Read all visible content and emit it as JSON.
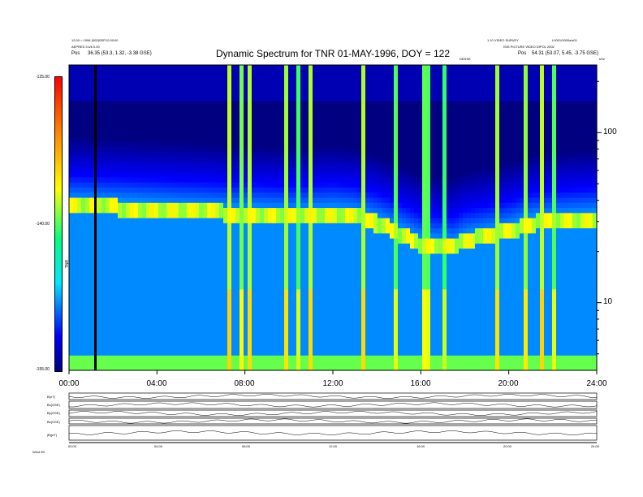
{
  "header": {
    "title": "Dynamic Spectrum for TNR 01-MAY-1996, DOY = 122",
    "left_info_1": "12:00 = 1996 (000)SEP12:00:00",
    "left_info_2": "AEPRES 3 s/s 0.00",
    "left_pos_label": "Pos",
    "left_pos_value": "36.35 (53.3, 1.32, -3.38 GSE)",
    "right_info_1": "1.10 VIDEO SURVEY",
    "right_info_2": "ISIS PICTURE VIDEO DIPOL 2002",
    "right_pos_label": "Pos",
    "right_pos_value": "54.31 (53.07, 5.45, -3.75 GSE)",
    "right_corner": "L0001/0000a/s01",
    "khz_unit": "kHz",
    "center_tag": "DENSE"
  },
  "colorbar": {
    "ticks": [
      "-125.00",
      "-140.00",
      "-155.00"
    ],
    "label": "TNR"
  },
  "chart_data": {
    "type": "heatmap",
    "title": "Dynamic Spectrum for TNR 01-MAY-1996, DOY = 122",
    "x_ticks": [
      "00:00",
      "04:00",
      "08:00",
      "12:00",
      "16:00",
      "20:00",
      "24:00"
    ],
    "xlim_hours": [
      0,
      24
    ],
    "y_scale": "log",
    "y_ticks": [
      "100",
      "10"
    ],
    "y_unit": "kHz",
    "ylim": [
      4,
      250
    ],
    "color_range": [
      -155,
      -125
    ],
    "colormap": [
      "#000080",
      "#0000ff",
      "#00e6ff",
      "#00ff80",
      "#ffff00",
      "#ff8000",
      "#ff0000"
    ],
    "bands": [
      {
        "name": "background",
        "value": -147
      },
      {
        "name": "plasma_line_hours",
        "x": [
          0,
          2,
          4,
          6,
          8,
          10,
          12,
          13,
          14,
          16,
          17.5,
          18,
          20,
          21,
          22,
          24
        ],
        "freq_khz": [
          37,
          36,
          35,
          34,
          33,
          32,
          33,
          32,
          29,
          22,
          21,
          23,
          26,
          29,
          30,
          31
        ]
      }
    ],
    "vertical_marker_hour": 1.2,
    "events_hours": [
      7.3,
      7.8,
      8.2,
      9.9,
      10.5,
      11.0,
      13.4,
      14.8,
      15.5,
      16.1,
      16.4,
      16.8,
      17.0,
      19.5,
      20.8,
      21.5,
      22.0
    ]
  },
  "panels": {
    "labels": [
      "B(nT)",
      "Bx(GSE)",
      "By(GSE)",
      "Bz(GSE)",
      "|B|(nT)"
    ],
    "x_ticks": [
      "00:00",
      "04:00",
      "08:00",
      "12:00",
      "16:00",
      "20:00",
      "24:00"
    ],
    "footer_left": "Wind WI"
  }
}
